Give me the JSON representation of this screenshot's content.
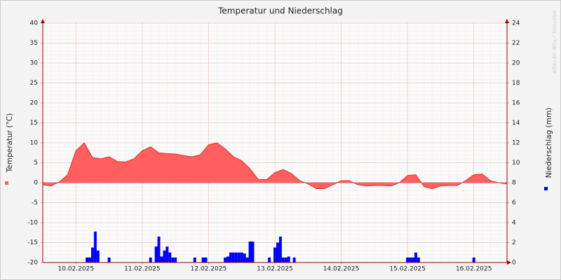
{
  "chart_data": {
    "type": "area-bar",
    "title": "Temperatur und Niederschlag",
    "ylabel": "Temperatur (°C)",
    "y2label": "Niederschlag (mm)",
    "watermark": "RRDTOOL / TOBI OETIKER",
    "xlim": [
      0,
      168
    ],
    "xticks": [
      {
        "value": 12,
        "label": "10.02.2025"
      },
      {
        "value": 36,
        "label": "11.02.2025"
      },
      {
        "value": 60,
        "label": "12.02.2025"
      },
      {
        "value": 84,
        "label": "13.02.2025"
      },
      {
        "value": 108,
        "label": "14.02.2025"
      },
      {
        "value": 132,
        "label": "15.02.2025"
      },
      {
        "value": 156,
        "label": "16.02.2025"
      }
    ],
    "ylim": [
      -20,
      40
    ],
    "yticks": [
      -20,
      -15,
      -10,
      -5,
      0,
      5,
      10,
      15,
      20,
      25,
      30,
      35,
      40
    ],
    "y2lim": [
      0,
      24
    ],
    "y2ticks": [
      0,
      2,
      4,
      6,
      8,
      10,
      12,
      14,
      16,
      18,
      20,
      22,
      24
    ],
    "grid": true,
    "series": [
      {
        "name": "Temperatur",
        "color": "#ff5f5f",
        "line_color": "#e03030",
        "x": [
          0,
          3,
          6,
          9,
          12,
          15,
          18,
          21,
          24,
          27,
          30,
          33,
          36,
          39,
          42,
          45,
          48,
          51,
          54,
          57,
          60,
          63,
          66,
          69,
          72,
          75,
          78,
          81,
          84,
          87,
          90,
          93,
          96,
          99,
          102,
          105,
          108,
          111,
          114,
          117,
          120,
          123,
          126,
          129,
          132,
          135,
          138,
          141,
          144,
          147,
          150,
          153,
          156,
          159,
          162,
          165,
          168
        ],
        "values": [
          -0.5,
          -0.8,
          0.2,
          2,
          8,
          10,
          6.3,
          6,
          6.5,
          5.3,
          5.2,
          6,
          8,
          9,
          7.5,
          7.3,
          7.2,
          6.8,
          6.5,
          7,
          9.5,
          10,
          8.5,
          6.5,
          5.5,
          3.5,
          0.8,
          0.8,
          2.5,
          3.3,
          2.3,
          0.5,
          -0.3,
          -1.5,
          -1.5,
          -0.5,
          0.5,
          0.5,
          -0.5,
          -0.8,
          -0.7,
          -0.7,
          -0.8,
          0,
          1.8,
          2,
          -1,
          -1.5,
          -0.8,
          -0.7,
          -0.7,
          0.5,
          2,
          2.2,
          0.5,
          0,
          -0.3
        ]
      },
      {
        "name": "Niederschlag",
        "color": "#0000ff",
        "axis": "y2",
        "x": [
          16,
          17,
          18,
          19,
          20,
          24,
          39,
          41,
          42,
          43,
          44,
          45,
          46,
          47,
          48,
          55,
          58,
          59,
          66,
          67,
          68,
          69,
          70,
          71,
          72,
          73,
          74,
          75,
          76,
          82,
          84,
          85,
          86,
          87,
          88,
          89,
          91,
          132,
          133,
          134,
          135,
          136,
          156
        ],
        "values": [
          0.5,
          0.5,
          1.5,
          3.1,
          1.2,
          0.5,
          0.5,
          1.6,
          2.6,
          0.6,
          1.2,
          1.6,
          1.0,
          0.5,
          0.5,
          0.5,
          0.5,
          0.5,
          0.5,
          0.6,
          1.0,
          1.0,
          1.0,
          1.0,
          1.0,
          0.9,
          0.5,
          2.1,
          2.1,
          0.5,
          1.5,
          2.0,
          2.6,
          0.5,
          0.5,
          0.6,
          0.5,
          0.5,
          0.5,
          0.5,
          1.0,
          0.5,
          0.5
        ]
      }
    ]
  }
}
